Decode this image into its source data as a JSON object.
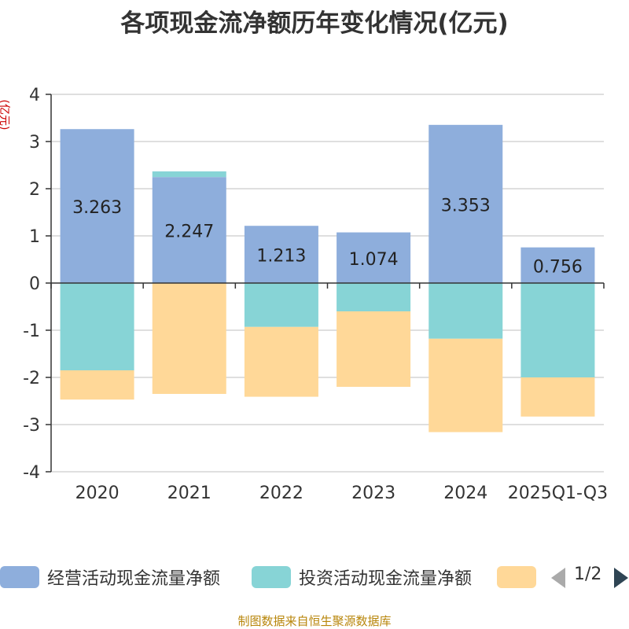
{
  "chart_data": {
    "type": "bar",
    "stacked": true,
    "title": "各项现金流净额历年变化情况(亿元)",
    "ylabel": "(亿元)",
    "ylim": [
      -4,
      4
    ],
    "yticks": [
      4,
      3,
      2,
      1,
      0,
      -1,
      -2,
      -3,
      -4
    ],
    "categories": [
      "2020",
      "2021",
      "2022",
      "2023",
      "2024",
      "2025Q1-Q3"
    ],
    "series": [
      {
        "name": "经营活动现金流量净额",
        "color": "#8eaedc",
        "values": [
          3.263,
          2.247,
          1.213,
          1.074,
          3.353,
          0.756
        ]
      },
      {
        "name": "投资活动现金流量净额",
        "color": "#87d4d6",
        "values": [
          -1.85,
          0.12,
          -0.93,
          -0.6,
          -1.18,
          -2.0
        ]
      },
      {
        "name": "",
        "color": "#ffd898",
        "values": [
          -0.62,
          -2.35,
          -1.48,
          -1.6,
          -1.98,
          -0.83
        ]
      }
    ],
    "data_labels": [
      "3.263",
      "2.247",
      "1.213",
      "1.074",
      "3.353",
      "0.756"
    ],
    "grid": true,
    "legend_position": "bottom"
  },
  "legend": {
    "page": "1/2"
  },
  "source": "制图数据来自恒生聚源数据库"
}
